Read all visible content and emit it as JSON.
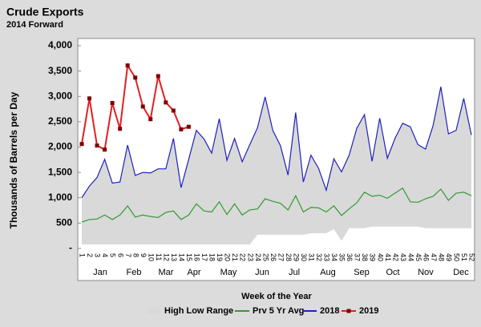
{
  "chart_data": {
    "type": "line",
    "title": "Crude Exports",
    "subtitle": "2014 Forward",
    "y_label": "Thousands of Barrels per Day",
    "x_label": "Week of the Year",
    "categories": [
      "1",
      "2",
      "3",
      "4",
      "5",
      "6",
      "7",
      "8",
      "9",
      "10",
      "11",
      "12",
      "13",
      "14",
      "15",
      "16",
      "17",
      "18",
      "19",
      "20",
      "21",
      "22",
      "23",
      "24",
      "25",
      "26",
      "27",
      "28",
      "29",
      "30",
      "31",
      "32",
      "33",
      "34",
      "35",
      "36",
      "37",
      "38",
      "39",
      "40",
      "41",
      "42",
      "43",
      "44",
      "45",
      "46",
      "47",
      "48",
      "49",
      "50",
      "51",
      "52"
    ],
    "months": [
      "Jan",
      "Feb",
      "Mar",
      "Apr",
      "May",
      "Jun",
      "Jul",
      "Aug",
      "Sep",
      "Oct",
      "Nov",
      "Dec"
    ],
    "ylim": [
      0,
      4000
    ],
    "yticks": [
      {
        "value": 0,
        "label": "-"
      },
      500,
      {
        "value": 1000,
        "label": "1,000"
      },
      {
        "value": 1500,
        "label": "1,500"
      },
      {
        "value": 2000,
        "label": "2,000"
      },
      {
        "value": 2500,
        "label": "2,500"
      },
      {
        "value": 3000,
        "label": "3,000"
      },
      {
        "value": 3500,
        "label": "3,500"
      },
      {
        "value": 4000,
        "label": "4,000"
      }
    ],
    "series": [
      {
        "name": "High Low Range",
        "type": "range",
        "color": "#d9d9d9",
        "low": [
          80,
          80,
          80,
          80,
          80,
          80,
          80,
          80,
          80,
          80,
          80,
          80,
          80,
          80,
          80,
          80,
          80,
          80,
          80,
          80,
          80,
          80,
          80,
          270,
          270,
          270,
          270,
          270,
          270,
          270,
          300,
          300,
          300,
          380,
          150,
          400,
          400,
          400,
          430,
          430,
          430,
          430,
          430,
          430,
          430,
          400,
          400,
          400,
          400,
          400,
          400,
          400
        ],
        "high": [
          1000,
          1230,
          1400,
          1760,
          1290,
          1310,
          2040,
          1440,
          1500,
          1490,
          1570,
          1570,
          2170,
          1200,
          1760,
          2330,
          2160,
          1880,
          2560,
          1740,
          2170,
          1710,
          2050,
          2380,
          2990,
          2330,
          2030,
          1450,
          2680,
          1310,
          1840,
          1580,
          1150,
          1770,
          1510,
          1840,
          2370,
          2640,
          1720,
          2570,
          1780,
          2170,
          2470,
          2400,
          2050,
          1960,
          2430,
          3190,
          2260,
          2330,
          2960,
          2240
        ]
      },
      {
        "name": "Prv 5 Yr Avg",
        "color": "#339933",
        "values": [
          520,
          570,
          580,
          660,
          570,
          660,
          840,
          620,
          660,
          630,
          610,
          710,
          740,
          570,
          660,
          880,
          740,
          720,
          920,
          670,
          880,
          660,
          760,
          780,
          980,
          930,
          890,
          760,
          1040,
          720,
          810,
          800,
          720,
          840,
          650,
          780,
          900,
          1110,
          1030,
          1050,
          990,
          1090,
          1190,
          920,
          910,
          980,
          1030,
          1170,
          950,
          1090,
          1110,
          1040
        ]
      },
      {
        "name": "2018",
        "color": "#1f1fbf",
        "values": [
          1000,
          1230,
          1400,
          1760,
          1290,
          1310,
          2040,
          1440,
          1500,
          1490,
          1570,
          1570,
          2170,
          1200,
          1760,
          2330,
          2160,
          1880,
          2560,
          1740,
          2170,
          1710,
          2050,
          2380,
          2990,
          2330,
          2030,
          1450,
          2680,
          1310,
          1840,
          1580,
          1150,
          1770,
          1510,
          1840,
          2370,
          2640,
          1720,
          2570,
          1780,
          2170,
          2470,
          2400,
          2050,
          1960,
          2430,
          3190,
          2260,
          2330,
          2960,
          2240
        ]
      },
      {
        "name": "2019",
        "color": "#e02020",
        "markers": true,
        "values": [
          2060,
          2960,
          2030,
          1950,
          2870,
          2360,
          3610,
          3370,
          2800,
          2550,
          3400,
          2880,
          2720,
          2350,
          2400,
          null,
          null,
          null,
          null,
          null,
          null,
          null,
          null,
          null,
          null,
          null,
          null,
          null,
          null,
          null,
          null,
          null,
          null,
          null,
          null,
          null,
          null,
          null,
          null,
          null,
          null,
          null,
          null,
          null,
          null,
          null,
          null,
          null,
          null,
          null,
          null,
          null
        ]
      }
    ]
  }
}
